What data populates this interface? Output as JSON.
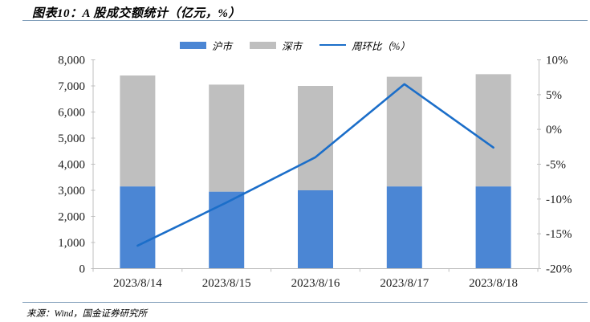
{
  "header": {
    "title": "图表10：A 股成交额统计（亿元，%）"
  },
  "legend": {
    "items": [
      {
        "label": "沪市",
        "type": "bar",
        "color": "#4b86d4"
      },
      {
        "label": "深市",
        "type": "bar",
        "color": "#bfbfbf"
      },
      {
        "label": "周环比（%）",
        "type": "line",
        "color": "#1b6ec9"
      }
    ]
  },
  "footer": {
    "source": "来源：Wind，国金证券研究所"
  },
  "colors": {
    "bar_blue": "#4b86d4",
    "bar_gray": "#bfbfbf",
    "line_blue": "#1b6ec9",
    "axis": "#bfbfbf",
    "axis_text": "#1a1a1a",
    "divider": "#7f9db9"
  },
  "chart_data": {
    "type": "bar",
    "subtype": "stacked-bars-with-line-on-secondary-axis",
    "title": "图表10：A 股成交额统计（亿元，%）",
    "categories": [
      "2023/8/14",
      "2023/8/15",
      "2023/8/16",
      "2023/8/17",
      "2023/8/18"
    ],
    "series": [
      {
        "name": "沪市",
        "type": "bar",
        "axis": "left",
        "color": "#4b86d4",
        "values": [
          3150,
          2950,
          3000,
          3150,
          3150
        ]
      },
      {
        "name": "深市",
        "type": "bar",
        "axis": "left",
        "color": "#bfbfbf",
        "values": [
          4250,
          4100,
          4000,
          4200,
          4300
        ]
      },
      {
        "name": "周环比（%）",
        "type": "line",
        "axis": "right",
        "color": "#1b6ec9",
        "values": [
          -16.7,
          -10.5,
          -4.0,
          6.5,
          -2.6
        ]
      }
    ],
    "stacked_totals": [
      7400,
      7050,
      7000,
      7350,
      7450
    ],
    "left_axis": {
      "min": 0,
      "max": 8000,
      "step": 1000,
      "labels": [
        "8,000",
        "7,000",
        "6,000",
        "5,000",
        "4,000",
        "3,000",
        "2,000",
        "1,000",
        "0"
      ]
    },
    "right_axis": {
      "min": -20,
      "max": 10,
      "step": 5,
      "labels": [
        "10%",
        "5%",
        "0%",
        "-5%",
        "-10%",
        "-15%",
        "-20%"
      ]
    },
    "grid": false,
    "legend_position": "top",
    "xlabel": "",
    "ylabel_left": "亿元",
    "ylabel_right": "%"
  }
}
